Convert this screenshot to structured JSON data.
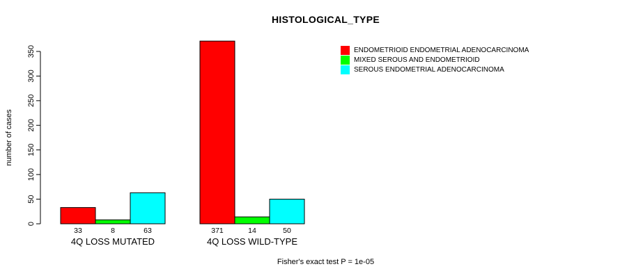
{
  "chart_data": {
    "type": "bar",
    "title": "HISTOLOGICAL_TYPE",
    "ylabel": "number of cases",
    "xlabel": "",
    "ylim": [
      0,
      350
    ],
    "yticks": [
      0,
      50,
      100,
      150,
      200,
      250,
      300,
      350
    ],
    "grid": false,
    "legend_position": "top-right",
    "categories": [
      "4Q LOSS MUTATED",
      "4Q LOSS WILD-TYPE"
    ],
    "series": [
      {
        "name": "ENDOMETRIOID ENDOMETRIAL ADENOCARCINOMA",
        "color": "#FF0000",
        "values": [
          33,
          371
        ]
      },
      {
        "name": "MIXED SEROUS AND ENDOMETRIOID",
        "color": "#00FF00",
        "values": [
          8,
          14
        ]
      },
      {
        "name": "SEROUS ENDOMETRIAL ADENOCARCINOMA",
        "color": "#00FFFF",
        "values": [
          63,
          50
        ]
      }
    ],
    "bar_value_labels": [
      [
        "33",
        "8",
        "63"
      ],
      [
        "371",
        "14",
        "50"
      ]
    ],
    "footnote": "Fisher's exact test P = 1e-05"
  },
  "colors": {
    "background": "#FFFFFF",
    "axis": "#000000",
    "text": "#000000",
    "bar_border": "#000000"
  }
}
